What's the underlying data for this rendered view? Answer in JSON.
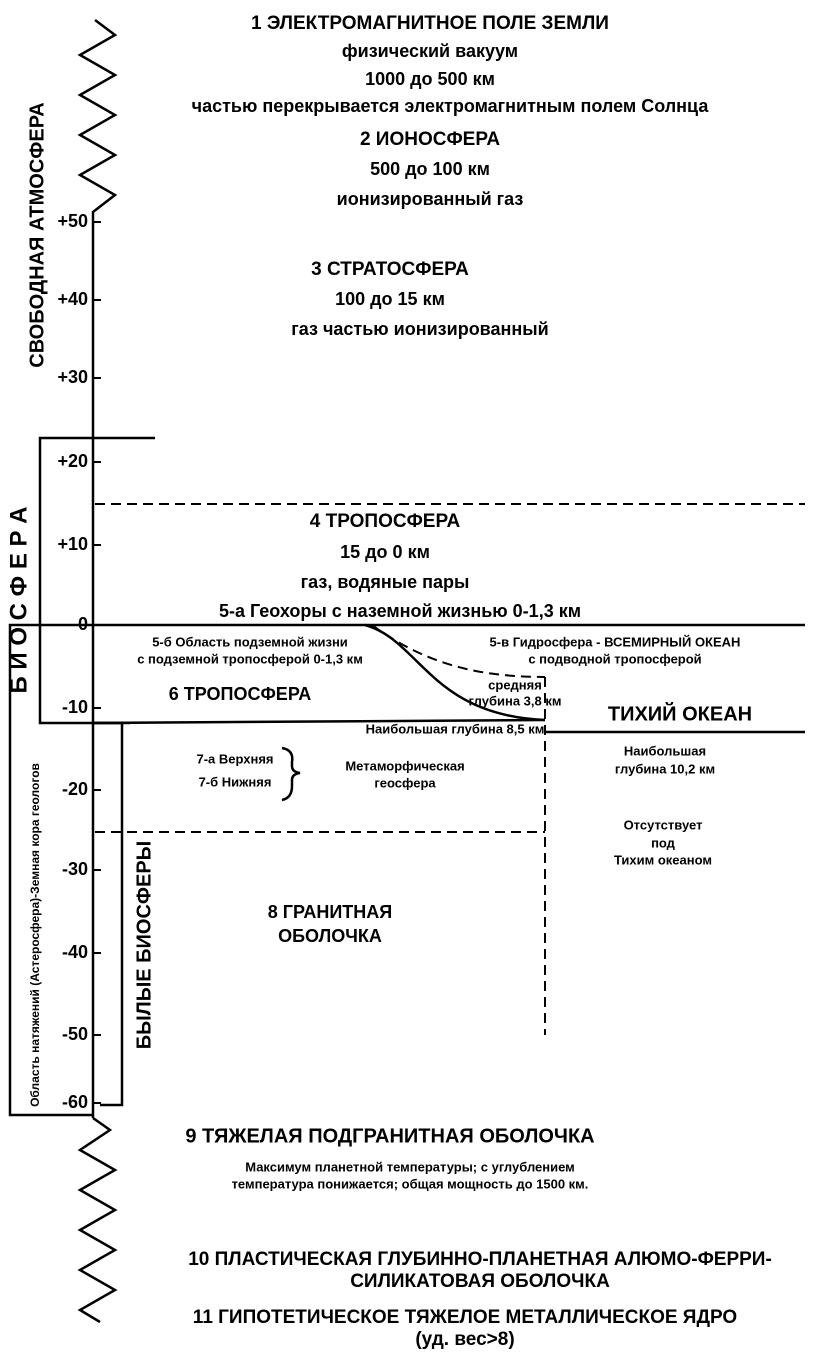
{
  "ticks": [
    "+50",
    "+40",
    "+30",
    "+20",
    "+10",
    "0",
    "-10",
    "-20",
    "-30",
    "-40",
    "-50",
    "-60"
  ],
  "side_labels": [
    "СВОБОДНАЯ АТМОСФЕРА",
    "Б И О С Ф Е Р А",
    "Область натяжений (Астеросфера)-Земная кора геологов",
    "БЫЛЫЕ БИОСФЕРЫ"
  ],
  "texts": [
    "1 ЭЛЕКТРОМАГНИТНОЕ ПОЛЕ ЗЕМЛИ",
    "физический вакуум",
    "1000 до 500 км",
    "частью перекрывается электромагнитным полем Солнца",
    "2 ИОНОСФЕРА",
    "500 до 100 км",
    "ионизированный газ",
    "3 СТРАТОСФЕРА",
    "100 до 15 км",
    "газ частью ионизированный",
    "4 ТРОПОСФЕРА",
    "15 до 0 км",
    "газ, водяные пары",
    "5-а Геохоры с наземной жизнью 0-1,3 км",
    "5-б Область подземной жизни",
    "с подземной тропосферой 0-1,3 км",
    "5-в Гидросфера - ВСЕМИРНЫЙ ОКЕАН",
    "с подводной тропосферой",
    "средняя",
    "глубина 3,8 км",
    "6 ТРОПОСФЕРА",
    "Наибольшая глубина 8,5 км",
    "ТИХИЙ ОКЕАН",
    "Наибольшая",
    "глубина 10,2 км",
    "7-а Верхняя",
    "7-б Нижняя",
    "Метаморфическая",
    "геосфера",
    "Отсутствует",
    "под",
    "Тихим океаном",
    "8 ГРАНИТНАЯ",
    "ОБОЛОЧКА",
    "9 ТЯЖЕЛАЯ ПОДГРАНИТНАЯ ОБОЛОЧКА",
    "Максимум планетной температуры; с углублением",
    "температура понижается; общая мощность до 1500 км.",
    "10 ПЛАСТИЧЕСКАЯ ГЛУБИННО-ПЛАНЕТНАЯ АЛЮМО-ФЕРРИ-",
    "СИЛИКАТОВАЯ ОБОЛОЧКА",
    "11 ГИПОТЕТИЧЕСКОЕ ТЯЖЕЛОЕ МЕТАЛЛИЧЕСКОЕ ЯДРО",
    "(уд. вес>8)"
  ]
}
